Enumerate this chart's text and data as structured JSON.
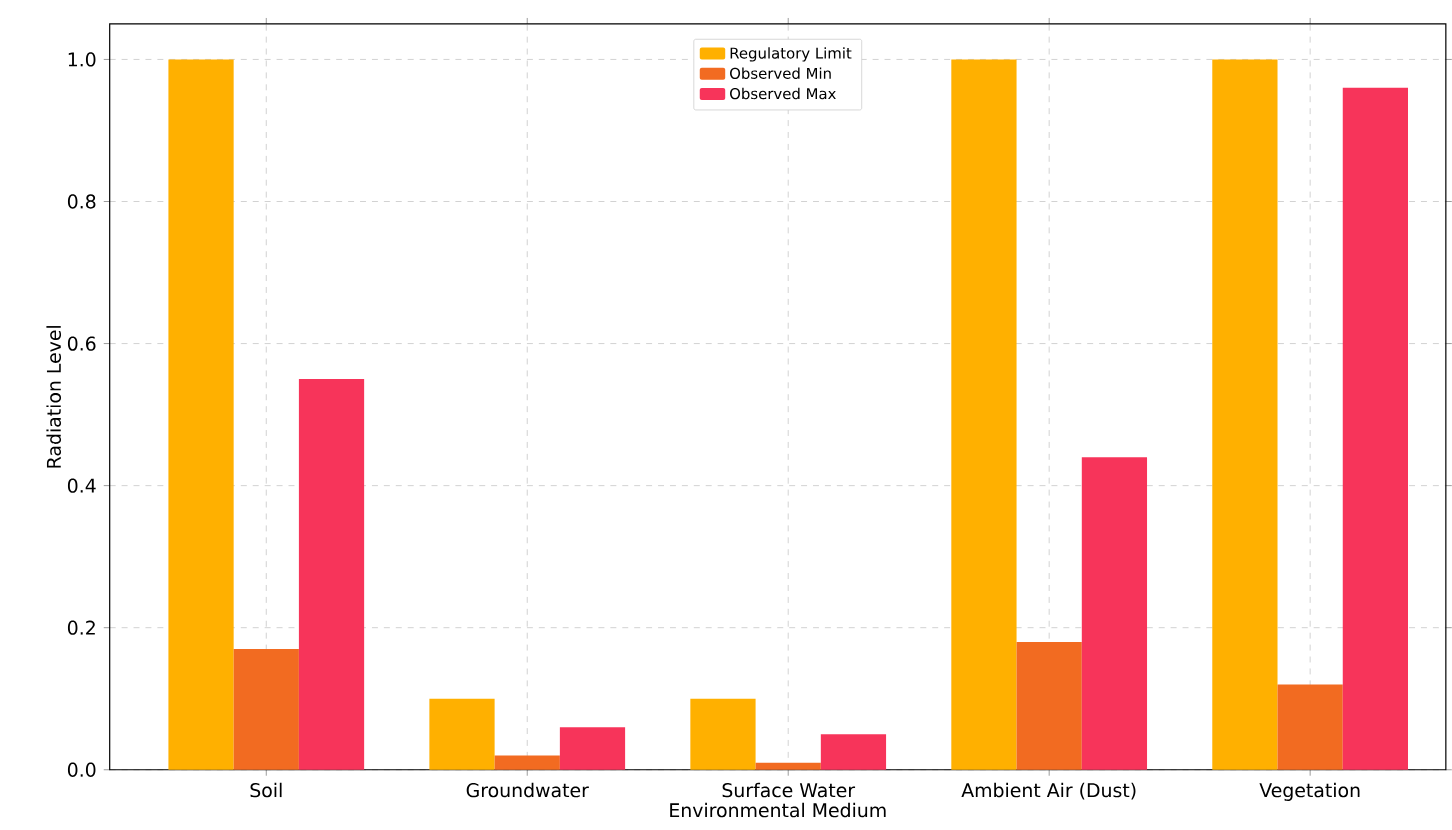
{
  "chart_data": {
    "type": "bar",
    "xlabel": "Environmental Medium",
    "ylabel": "Radiation Level",
    "categories": [
      "Soil",
      "Groundwater",
      "Surface Water",
      "Ambient Air (Dust)",
      "Vegetation"
    ],
    "series": [
      {
        "name": "Regulatory Limit",
        "color": "#ffb000",
        "values": [
          1.0,
          0.1,
          0.1,
          1.0,
          1.0
        ]
      },
      {
        "name": "Observed Min",
        "color": "#f26b21",
        "values": [
          0.17,
          0.02,
          0.01,
          0.18,
          0.12
        ]
      },
      {
        "name": "Observed Max",
        "color": "#f7345a",
        "values": [
          0.55,
          0.06,
          0.05,
          0.44,
          0.96
        ]
      }
    ],
    "ylim": [
      0,
      1.05
    ],
    "yticks": [
      {
        "value": 0,
        "label": "0.0"
      },
      {
        "value": 0.2,
        "label": "0.2"
      },
      {
        "value": 0.4,
        "label": "0.4"
      },
      {
        "value": 0.6,
        "label": "0.6"
      },
      {
        "value": 0.8,
        "label": "0.8"
      },
      {
        "value": 1.0,
        "label": "1.0"
      }
    ],
    "grid": true,
    "legend": "top"
  }
}
